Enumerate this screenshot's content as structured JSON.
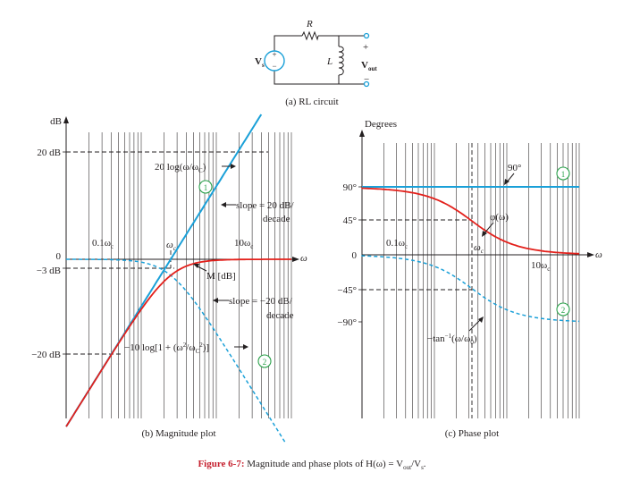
{
  "circuit": {
    "source_label": "V",
    "source_sub": "s",
    "plus": "+",
    "minus": "−",
    "resistor_label": "R",
    "inductor_label": "L",
    "out_plus": "+",
    "out_minus": "−",
    "out_label": "V",
    "out_sub": "out",
    "caption": "(a) RL circuit"
  },
  "magnitude": {
    "ylabel": "dB",
    "xlabel": "ω",
    "tick_20": "20 dB",
    "tick_0": "0",
    "tick_m3": "−3 dB",
    "tick_m20": "−20 dB",
    "x_01": "0.1ω",
    "x_01_sub": "c",
    "x_1": "ω",
    "x_1_sub": "c",
    "x_10": "10ω",
    "x_10_sub": "c",
    "ann_20log": "20 log(ω/ω",
    "ann_20log_sub": "C",
    "ann_20log_end": ")",
    "ann_circle1": "1",
    "ann_slope_up_1": "slope = 20 dB/",
    "ann_slope_up_2": "decade",
    "ann_M": "M [dB]",
    "ann_slope_dn_1": "slope = −20 dB/",
    "ann_slope_dn_2": "decade",
    "ann_10log": "−10 log[1 + (ω",
    "ann_10log_sup": "2",
    "ann_10log_mid": "/ω",
    "ann_10log_sub": "C",
    "ann_10log_sup2": "2",
    "ann_10log_end": ")]",
    "ann_circle2": "2",
    "caption": "(b) Magnitude plot"
  },
  "phase": {
    "ylabel": "Degrees",
    "xlabel": "ω",
    "tick_90": "90°",
    "tick_45": "45°",
    "tick_0": "0",
    "tick_m45": "−45°",
    "tick_m90": "−90°",
    "x_01": "0.1ω",
    "x_01_sub": "c",
    "x_1": "ω",
    "x_1_sub": "c",
    "x_10": "10ω",
    "x_10_sub": "c",
    "ann_90": "90°",
    "ann_circle1": "1",
    "ann_phi": "φ(ω)",
    "ann_circle2": "2",
    "ann_tan": "−tan",
    "ann_tan_sup": "−1",
    "ann_tan_end": "(ω/ω",
    "ann_tan_sub": "0",
    "ann_tan_close": ")",
    "caption": "(c) Phase plot"
  },
  "figure_caption": {
    "label": "Figure 6-7:",
    "text": " Magnitude and phase plots of H(ω) = V",
    "sub1": "out",
    "mid": "/V",
    "sub2": "s",
    "end": "."
  },
  "colors": {
    "blue": "#1aa0d8",
    "red": "#e3201b",
    "green": "#2aa14a",
    "caption_red": "#c5202e",
    "text": "#231f20"
  }
}
